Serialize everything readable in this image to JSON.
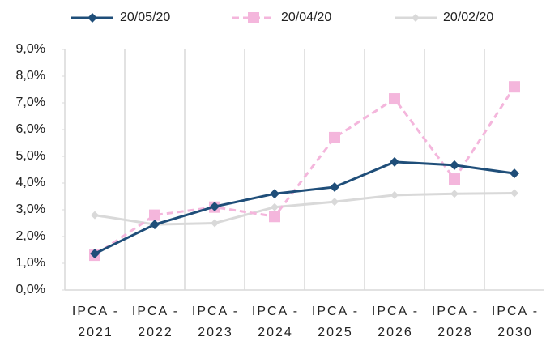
{
  "chart_data": {
    "type": "line",
    "categories": [
      "IPCA - 2021",
      "IPCA - 2022",
      "IPCA - 2023",
      "IPCA - 2024",
      "IPCA - 2025",
      "IPCA - 2026",
      "IPCA - 2028",
      "IPCA - 2030"
    ],
    "series": [
      {
        "name": "20/05/20",
        "color": "#1f4e79",
        "marker": "diamond",
        "dashed": false,
        "values": [
          1.36,
          2.45,
          3.12,
          3.6,
          3.85,
          4.79,
          4.67,
          4.36
        ]
      },
      {
        "name": "20/04/20",
        "color": "#f4b6dc",
        "marker": "square",
        "dashed": true,
        "values": [
          1.3,
          2.8,
          3.1,
          2.75,
          5.7,
          7.15,
          4.15,
          7.6
        ]
      },
      {
        "name": "20/02/20",
        "color": "#d9d9d9",
        "marker": "small-diamond",
        "dashed": false,
        "values": [
          2.8,
          2.45,
          2.5,
          3.1,
          3.3,
          3.55,
          3.6,
          3.62
        ]
      }
    ],
    "ylim": [
      0,
      9
    ],
    "yticks": [
      {
        "value": 0,
        "label": "0,0%"
      },
      {
        "value": 1,
        "label": "1,0%"
      },
      {
        "value": 2,
        "label": "2,0%"
      },
      {
        "value": 3,
        "label": "3,0%"
      },
      {
        "value": 4,
        "label": "4,0%"
      },
      {
        "value": 5,
        "label": "5,0%"
      },
      {
        "value": 6,
        "label": "6,0%"
      },
      {
        "value": 7,
        "label": "7,0%"
      },
      {
        "value": 8,
        "label": "8,0%"
      },
      {
        "value": 9,
        "label": "9,0%"
      }
    ],
    "legend": "top"
  }
}
